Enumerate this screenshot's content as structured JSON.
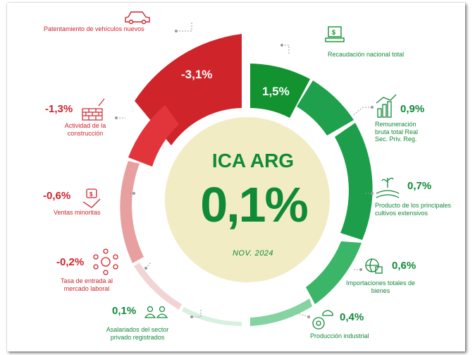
{
  "center": {
    "title": "ICA ARG",
    "value": "0,1%",
    "date": "NOV. 2024"
  },
  "segments": [
    {
      "label": "Patentamiento de vehículos nuevos",
      "value": "-3,1%",
      "icon": "car-icon",
      "color": "#d0242b"
    },
    {
      "label": "Recaudación nacional total",
      "value": "1,5%",
      "icon": "money-icon",
      "color": "#12932f"
    },
    {
      "label": "Remuneración bruta total Real Sec. Priv. Reg.",
      "value": "0,9%",
      "icon": "salary-chart-icon",
      "color": "#1fa04d"
    },
    {
      "label": "Producto de los principales cultivos extensivos",
      "value": "0,7%",
      "icon": "crop-icon",
      "color": "#1c9e4a"
    },
    {
      "label": "Importaciones totales de bienes",
      "value": "0,6%",
      "icon": "globe-box-icon",
      "color": "#3bb567"
    },
    {
      "label": "Producción industrial",
      "value": "0,4%",
      "icon": "gear-helmet-icon",
      "color": "#86d3a2"
    },
    {
      "label": "Asalariados del sector privado registrados",
      "value": "0,1%",
      "icon": "people-icon",
      "color": "#d7f0df"
    },
    {
      "label": "Tasa de entrada al mercado laboral",
      "value": "-0,2%",
      "icon": "network-icon",
      "color": "#f3d4d4"
    },
    {
      "label": "Ventas minoritas",
      "value": "-0,6%",
      "icon": "hand-money-icon",
      "color": "#e89f9f"
    },
    {
      "label": "Actividad de la construcción",
      "value": "-1,3%",
      "icon": "bricks-icon",
      "color": "#e2353b"
    }
  ],
  "colors": {
    "negative": "#d0242b",
    "positive": "#128a3a",
    "center_fill": "#f1ecc4"
  }
}
